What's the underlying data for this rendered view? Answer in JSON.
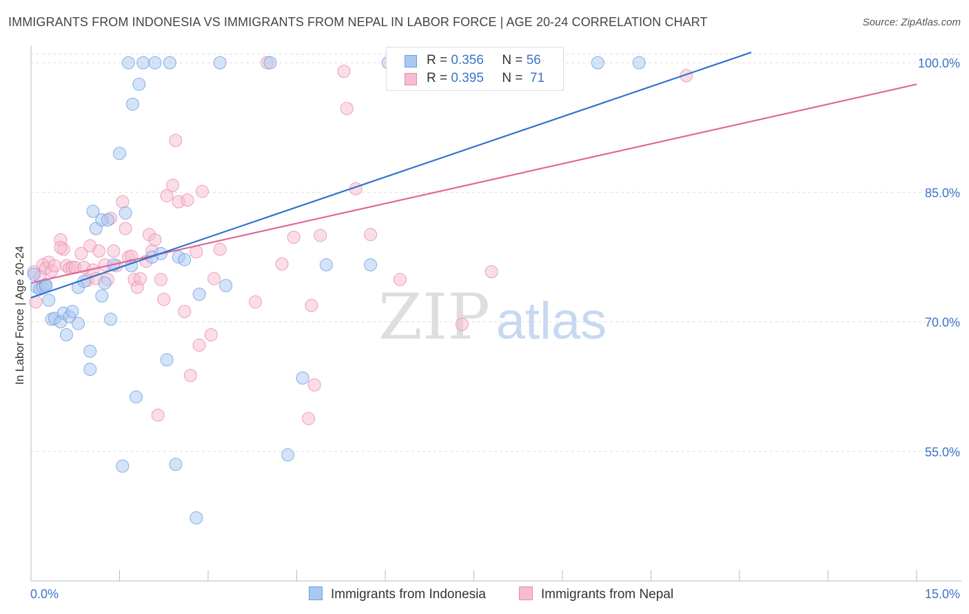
{
  "header": {
    "title": "IMMIGRANTS FROM INDONESIA VS IMMIGRANTS FROM NEPAL IN LABOR FORCE | AGE 20-24 CORRELATION CHART",
    "source": "Source: ZipAtlas.com"
  },
  "watermark": {
    "zip": "ZIP",
    "atlas": "atlas"
  },
  "legend": {
    "r_label": "R =",
    "n_label": "N =",
    "rows": [
      {
        "r": "0.356",
        "n": "56"
      },
      {
        "r": "0.395",
        "n": "71"
      }
    ]
  },
  "colors": {
    "indonesia_fill": "#aac8f0",
    "indonesia_stroke": "#6a9ee0",
    "indonesia_line": "#2f72d0",
    "nepal_fill": "#f6bcd0",
    "nepal_stroke": "#e88aac",
    "nepal_line": "#e0679a",
    "tick_label": "#3a74c9"
  },
  "chart_data": {
    "type": "scatter",
    "title": "IMMIGRANTS FROM INDONESIA VS IMMIGRANTS FROM NEPAL IN LABOR FORCE | AGE 20-24 CORRELATION CHART",
    "xlabel": "",
    "ylabel": "In Labor Force | Age 20-24",
    "xlim": [
      0,
      15
    ],
    "ylim": [
      40,
      102
    ],
    "x_tick_labels": [
      "0.0%",
      "15.0%"
    ],
    "y_ticks": [
      55,
      70,
      85,
      100
    ],
    "y_tick_labels": [
      "55.0%",
      "70.0%",
      "85.0%",
      "100.0%"
    ],
    "grid": true,
    "legend_position": "top-center",
    "series": [
      {
        "name": "Immigrants from Indonesia",
        "trend": {
          "x": [
            0.0,
            12.2
          ],
          "y": [
            72.8,
            101.2
          ]
        },
        "points": [
          [
            0.05,
            75.5
          ],
          [
            0.1,
            74.0
          ],
          [
            0.15,
            73.8
          ],
          [
            0.2,
            74.0
          ],
          [
            0.25,
            74.3
          ],
          [
            0.3,
            72.5
          ],
          [
            0.35,
            70.3
          ],
          [
            0.4,
            70.4
          ],
          [
            0.5,
            70.0
          ],
          [
            0.55,
            71.0
          ],
          [
            0.6,
            68.5
          ],
          [
            0.65,
            70.6
          ],
          [
            0.7,
            71.2
          ],
          [
            0.8,
            69.8
          ],
          [
            0.8,
            74.0
          ],
          [
            0.9,
            74.7
          ],
          [
            1.0,
            64.5
          ],
          [
            1.0,
            66.6
          ],
          [
            1.05,
            82.8
          ],
          [
            1.1,
            80.8
          ],
          [
            1.2,
            73.0
          ],
          [
            1.2,
            81.8
          ],
          [
            1.25,
            74.5
          ],
          [
            1.3,
            81.8
          ],
          [
            1.35,
            70.3
          ],
          [
            1.4,
            76.6
          ],
          [
            1.5,
            89.5
          ],
          [
            1.55,
            53.3
          ],
          [
            1.6,
            82.6
          ],
          [
            1.65,
            100.0
          ],
          [
            1.7,
            76.5
          ],
          [
            1.72,
            95.2
          ],
          [
            1.78,
            61.3
          ],
          [
            1.83,
            97.5
          ],
          [
            1.9,
            100.0
          ],
          [
            2.05,
            77.5
          ],
          [
            2.1,
            100.0
          ],
          [
            2.2,
            77.9
          ],
          [
            2.3,
            65.6
          ],
          [
            2.35,
            100.0
          ],
          [
            2.45,
            53.5
          ],
          [
            2.5,
            77.5
          ],
          [
            2.6,
            77.2
          ],
          [
            2.8,
            47.3
          ],
          [
            2.85,
            73.2
          ],
          [
            3.2,
            100.0
          ],
          [
            3.3,
            74.2
          ],
          [
            4.05,
            100.0
          ],
          [
            4.35,
            54.6
          ],
          [
            4.6,
            63.5
          ],
          [
            5.0,
            76.6
          ],
          [
            5.75,
            76.6
          ],
          [
            6.05,
            100.0
          ],
          [
            9.6,
            100.0
          ],
          [
            10.3,
            100.0
          ],
          [
            0.25,
            74.1
          ]
        ]
      },
      {
        "name": "Immigrants from Nepal",
        "trend": {
          "x": [
            0.0,
            15.0
          ],
          "y": [
            74.5,
            97.5
          ]
        },
        "points": [
          [
            0.05,
            75.8
          ],
          [
            0.08,
            72.3
          ],
          [
            0.15,
            75.2
          ],
          [
            0.2,
            76.6
          ],
          [
            0.25,
            76.2
          ],
          [
            0.3,
            76.9
          ],
          [
            0.35,
            75.9
          ],
          [
            0.4,
            76.5
          ],
          [
            0.5,
            79.5
          ],
          [
            0.55,
            78.4
          ],
          [
            0.6,
            76.5
          ],
          [
            0.65,
            76.2
          ],
          [
            0.7,
            76.3
          ],
          [
            0.75,
            76.3
          ],
          [
            0.85,
            77.9
          ],
          [
            0.9,
            76.3
          ],
          [
            0.95,
            74.8
          ],
          [
            1.0,
            78.8
          ],
          [
            1.05,
            76.0
          ],
          [
            1.1,
            75.0
          ],
          [
            1.15,
            78.2
          ],
          [
            1.25,
            76.6
          ],
          [
            1.3,
            74.9
          ],
          [
            1.35,
            82.0
          ],
          [
            1.4,
            78.2
          ],
          [
            1.45,
            76.5
          ],
          [
            1.55,
            83.9
          ],
          [
            1.6,
            80.8
          ],
          [
            1.65,
            77.5
          ],
          [
            1.7,
            77.6
          ],
          [
            1.75,
            74.9
          ],
          [
            1.8,
            74.0
          ],
          [
            1.85,
            75.0
          ],
          [
            1.95,
            77.0
          ],
          [
            2.0,
            80.1
          ],
          [
            2.05,
            78.2
          ],
          [
            2.1,
            79.5
          ],
          [
            2.15,
            59.2
          ],
          [
            2.2,
            74.9
          ],
          [
            2.25,
            72.6
          ],
          [
            2.3,
            84.6
          ],
          [
            2.4,
            85.8
          ],
          [
            2.45,
            91.0
          ],
          [
            2.5,
            83.9
          ],
          [
            2.6,
            71.2
          ],
          [
            2.65,
            84.1
          ],
          [
            2.7,
            63.8
          ],
          [
            2.8,
            78.1
          ],
          [
            2.85,
            67.3
          ],
          [
            2.9,
            85.1
          ],
          [
            3.05,
            68.5
          ],
          [
            3.1,
            75.0
          ],
          [
            3.2,
            78.4
          ],
          [
            3.8,
            72.3
          ],
          [
            4.0,
            100.0
          ],
          [
            4.25,
            76.7
          ],
          [
            4.45,
            79.8
          ],
          [
            4.7,
            58.8
          ],
          [
            4.75,
            71.9
          ],
          [
            4.8,
            62.7
          ],
          [
            4.9,
            80.0
          ],
          [
            5.3,
            99.0
          ],
          [
            5.35,
            94.7
          ],
          [
            5.5,
            85.4
          ],
          [
            5.75,
            80.1
          ],
          [
            6.25,
            74.9
          ],
          [
            6.6,
            100.0
          ],
          [
            7.3,
            69.7
          ],
          [
            7.8,
            75.8
          ],
          [
            11.1,
            98.5
          ],
          [
            0.5,
            78.6
          ]
        ]
      }
    ]
  }
}
